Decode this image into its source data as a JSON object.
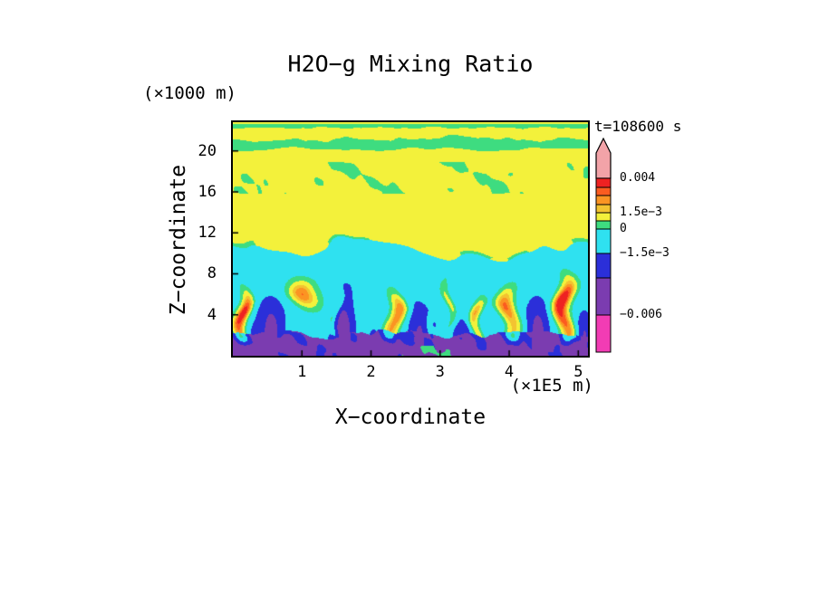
{
  "chart_data": {
    "type": "heatmap",
    "title": "H2O−g Mixing Ratio",
    "time_label": "t=108600 s",
    "xlabel": "X−coordinate",
    "x_unit": "(×1E5 m)",
    "ylabel": "Z−coordinate",
    "y_unit": "(×1000 m)",
    "x_ticks": [
      "1",
      "2",
      "3",
      "4",
      "5"
    ],
    "x_tick_values": [
      1,
      2,
      3,
      4,
      5
    ],
    "z_ticks": [
      "4",
      "8",
      "12",
      "16",
      "20"
    ],
    "z_tick_values": [
      4,
      8,
      12,
      16,
      20
    ],
    "x_range": [
      0,
      5.14
    ],
    "z_range": [
      0,
      22.8
    ],
    "grid": false,
    "legend_position": "right-colorbar",
    "value_levels": [
      -0.006,
      -0.003,
      -0.0015,
      0,
      0.00075,
      0.0015,
      0.002,
      0.0025,
      0.003,
      0.004
    ],
    "band_colors": [
      "#f23cb4",
      "#7b3cb0",
      "#2b2fd9",
      "#2fe1f0",
      "#3edc80",
      "#f3f13b",
      "#f3c331",
      "#fb9423",
      "#fb5c20",
      "#ee2222",
      "#f2a3a8"
    ],
    "colorbar_labels": [
      "0.004",
      "1.5e−3",
      "0",
      "−1.5e−3",
      "−0.006"
    ],
    "field_structure": {
      "description": "Vertical x–z cross-section of H2O-g mixing-ratio perturbation. Positive (yellow) layer aloft from z≈10–23 km containing near-zero (green) wavy bands near z≈20–22 km and green blobs at z≈16–19 km; slightly negative (cyan) band at z≈8–10.5 km; convective layer below z≈8 km with warm updraft plumes (yellow envelopes, orange/red cores) and cool blue/purple downdraft columns; strongly negative purple layer below z≈2 km with green speckles near x≈2.5–3.4.",
      "updraft_plume_x_positions_1e5m": [
        0.15,
        1.05,
        1.5,
        2.35,
        2.9,
        3.12,
        3.55,
        4.0,
        4.8
      ],
      "downdraft_x_positions_1e5m": [
        0.32,
        0.55,
        1.6,
        2.05,
        2.7,
        3.35,
        4.42,
        5.08
      ]
    }
  }
}
